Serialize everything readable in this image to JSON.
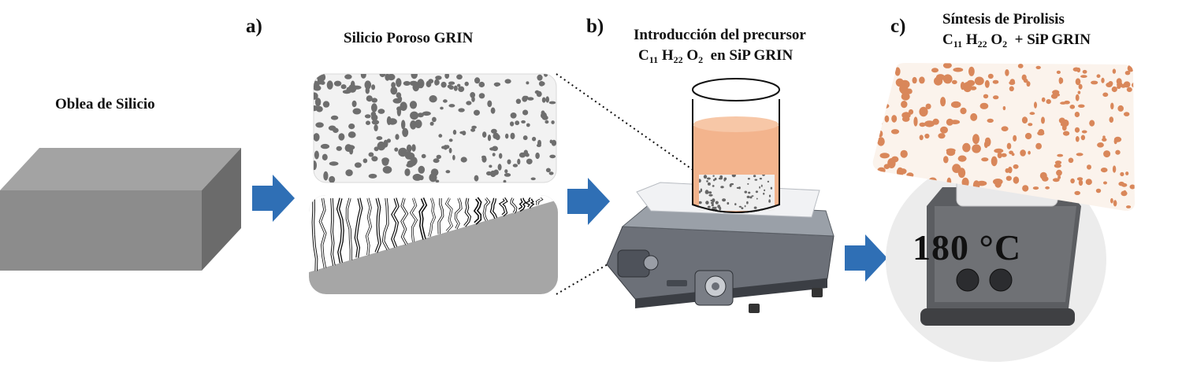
{
  "steps": {
    "a": "a)",
    "b": "b)",
    "c": "c)"
  },
  "wafer_label": "Oblea de Silicio",
  "porous_label": "Silicio Poroso GRIN",
  "precursor": {
    "line1": "Introducción del precursor",
    "C": "C",
    "C_sub": "11",
    "H": "H",
    "H_sub": "22",
    "O": "O",
    "O_sub": "2",
    "tail": "en SiP GRIN"
  },
  "pyrolysis": {
    "line1": "Síntesis de Pirolisis",
    "C": "C",
    "C_sub": "11",
    "H": "H",
    "H_sub": "22",
    "O": "O",
    "O_sub": "2",
    "tail": "+ SiP GRIN"
  },
  "temperature": "180 °C",
  "colors": {
    "arrow": "#2f6fb5",
    "wafer_front": "#8a8a8a",
    "wafer_top": "#a0a0a0",
    "wafer_side": "#6a6a6a",
    "pores_gray": "#6e6e6e",
    "pores_orange": "#d9875a",
    "liquid": "#f2b58e"
  }
}
